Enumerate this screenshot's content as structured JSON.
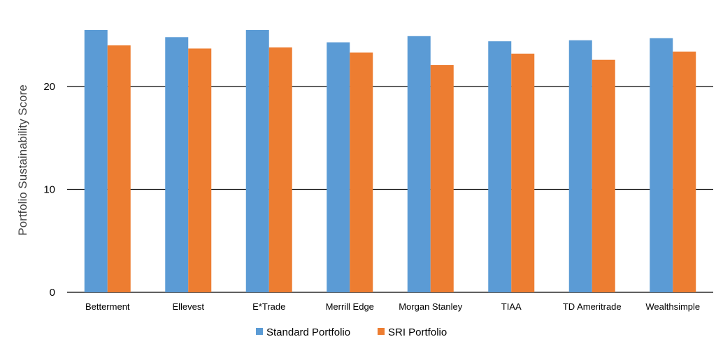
{
  "chart_data": {
    "type": "bar",
    "title": "",
    "xlabel": "",
    "ylabel": "Portfolio Sustainability Score",
    "ylim": [
      0,
      25.7
    ],
    "yticks": [
      0,
      10,
      20
    ],
    "grid": true,
    "legend_position": "bottom",
    "categories": [
      "Betterment",
      "Ellevest",
      "E*Trade",
      "Merrill Edge",
      "Morgan Stanley",
      "TIAA",
      "TD Ameritrade",
      "Wealthsimple"
    ],
    "series": [
      {
        "name": "Standard Portfolio",
        "color": "#5b9bd5",
        "values": [
          25.5,
          24.8,
          25.5,
          24.3,
          24.9,
          24.4,
          24.5,
          24.7
        ]
      },
      {
        "name": "SRI Portfolio",
        "color": "#ed7d31",
        "values": [
          24.0,
          23.7,
          23.8,
          23.3,
          22.1,
          23.2,
          22.6,
          23.4
        ]
      }
    ]
  }
}
